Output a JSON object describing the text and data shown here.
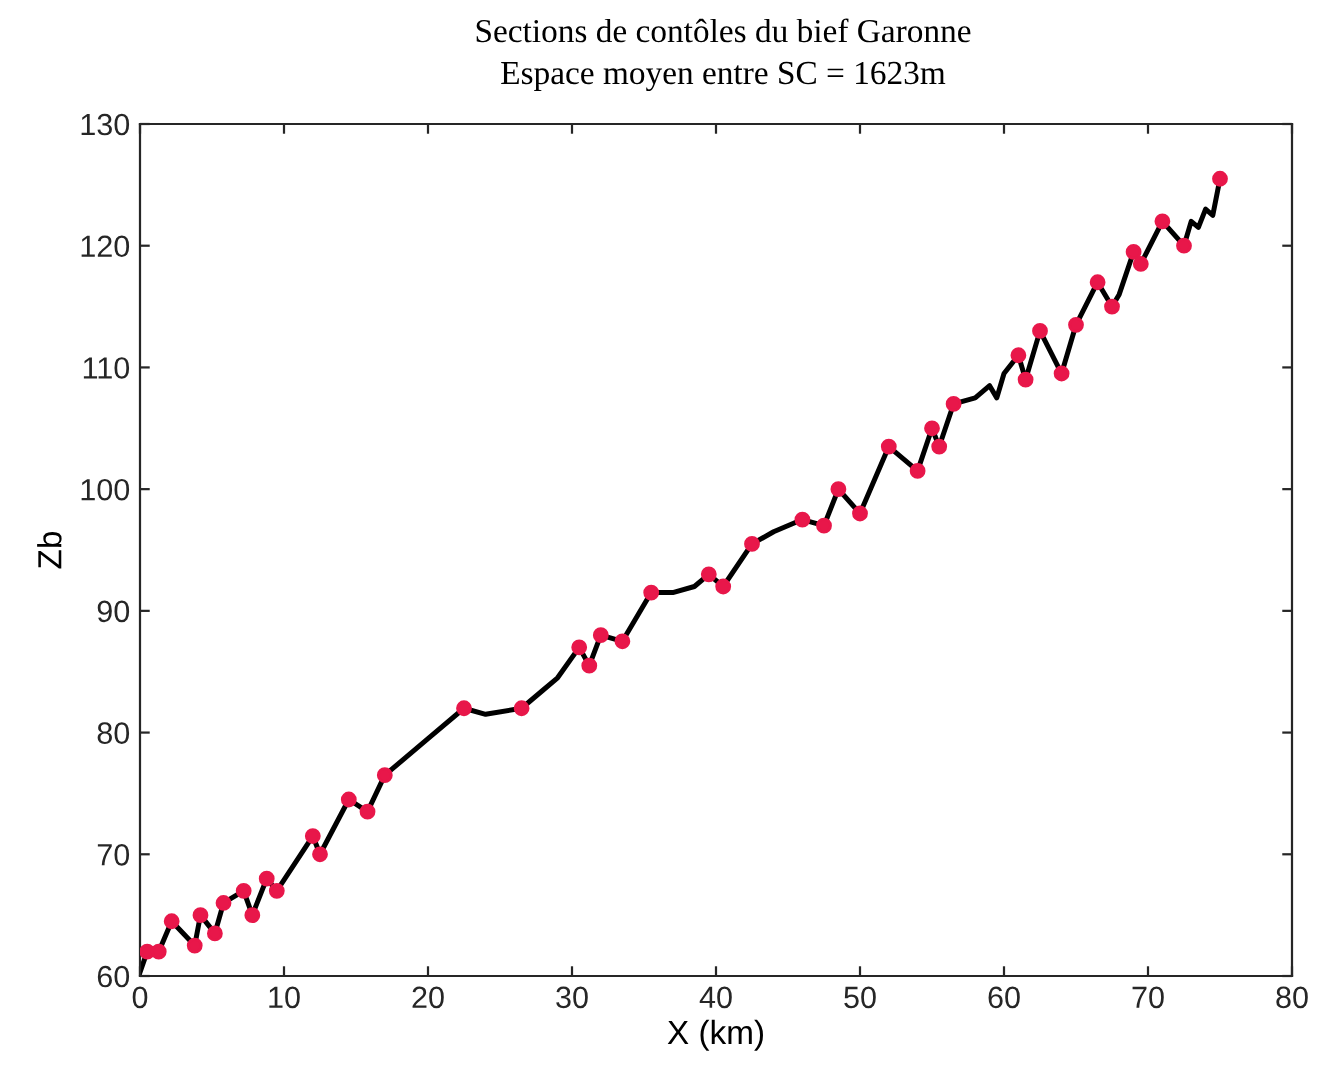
{
  "chart_data": {
    "type": "line",
    "title": "Sections de contôles du bief Garonne",
    "subtitle": "Espace moyen entre SC = 1623m",
    "xlabel": "X (km)",
    "ylabel": "Zb",
    "xlim": [
      0,
      80
    ],
    "ylim": [
      60,
      130
    ],
    "xticks": [
      0,
      10,
      20,
      30,
      40,
      50,
      60,
      70,
      80
    ],
    "yticks": [
      60,
      70,
      80,
      90,
      100,
      110,
      120,
      130
    ],
    "grid": false,
    "legend": false,
    "series": [
      {
        "color": "#000000",
        "marker": "none",
        "line_style": "solid",
        "x": [
          0,
          0.5,
          1.3,
          2.2,
          3.8,
          4.2,
          5.2,
          5.8,
          7.2,
          7.8,
          8.8,
          9.5,
          12,
          12.5,
          14.5,
          15.8,
          17,
          20,
          22.5,
          24,
          26.5,
          28,
          29,
          30.5,
          31.2,
          32,
          33.5,
          35.5,
          37,
          38.5,
          39.5,
          40.5,
          42.5,
          44,
          46,
          47.5,
          48.5,
          50,
          52,
          54,
          55,
          55.5,
          56.5,
          58,
          59,
          59.5,
          60,
          61,
          61.5,
          62.5,
          64,
          65,
          66.5,
          67.5,
          68,
          69,
          69.5,
          71,
          72.5,
          73,
          73.5,
          74,
          74.5,
          75
        ],
        "values": [
          60.3,
          62,
          62,
          64.5,
          62.5,
          65,
          63.5,
          66,
          67,
          65,
          68,
          67,
          71.5,
          70,
          74.5,
          73.5,
          76.5,
          79.5,
          82,
          81.5,
          82,
          83.5,
          84.5,
          87,
          85.5,
          88,
          87.5,
          91.5,
          91.5,
          92,
          93,
          92,
          95.5,
          96.5,
          97.5,
          97,
          100,
          98,
          103.5,
          101.5,
          105,
          103.5,
          107,
          107.5,
          108.5,
          107.5,
          109.5,
          111,
          109,
          113,
          109.5,
          113.5,
          117,
          115,
          116,
          119.5,
          118.5,
          122,
          120,
          122,
          121.5,
          123,
          122.5,
          125.5
        ]
      },
      {
        "type": "scatter",
        "color": "#e8174a",
        "marker": "circle",
        "x": [
          0.5,
          1.3,
          2.2,
          3.8,
          4.2,
          5.2,
          5.8,
          7.2,
          7.8,
          8.8,
          9.5,
          12,
          12.5,
          14.5,
          15.8,
          17,
          22.5,
          26.5,
          30.5,
          31.2,
          32,
          33.5,
          35.5,
          39.5,
          40.5,
          42.5,
          46,
          47.5,
          48.5,
          50,
          52,
          54,
          55,
          55.5,
          56.5,
          61,
          61.5,
          62.5,
          64,
          65,
          66.5,
          67.5,
          69,
          69.5,
          71,
          72.5,
          75
        ],
        "values": [
          62,
          62,
          64.5,
          62.5,
          65,
          63.5,
          66,
          67,
          65,
          68,
          67,
          71.5,
          70,
          74.5,
          73.5,
          76.5,
          82,
          82,
          87,
          85.5,
          88,
          87.5,
          91.5,
          93,
          92,
          95.5,
          97.5,
          97,
          100,
          98,
          103.5,
          101.5,
          105,
          103.5,
          107,
          111,
          109,
          113,
          109.5,
          113.5,
          117,
          115,
          119.5,
          118.5,
          122,
          120,
          125.5
        ]
      }
    ]
  }
}
